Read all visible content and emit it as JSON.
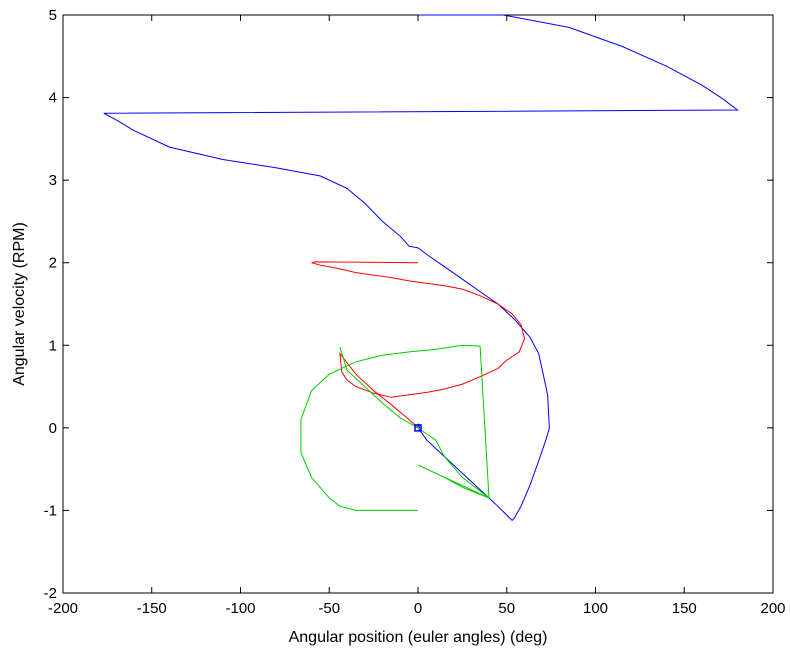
{
  "chart_data": {
    "type": "line",
    "title": "",
    "xlabel": "Angular position (euler angles) (deg)",
    "ylabel": "Angular velocity (RPM)",
    "xlim": [
      -200,
      200
    ],
    "ylim": [
      -2,
      5
    ],
    "xticks": [
      -200,
      -150,
      -100,
      -50,
      0,
      50,
      100,
      150,
      200
    ],
    "yticks": [
      -2,
      -1,
      0,
      1,
      2,
      3,
      4,
      5
    ],
    "grid": false,
    "legend": "none",
    "series": [
      {
        "color": "#0000ff",
        "x": [
          0,
          48,
          85,
          115,
          140,
          160,
          172,
          180,
          -177,
          -170,
          -160,
          -140,
          -110,
          -80,
          -55,
          -40,
          -30,
          -20,
          -10,
          -5,
          0,
          5,
          15,
          25,
          35,
          45,
          55,
          63,
          68,
          70,
          73,
          74,
          72,
          68,
          63,
          58,
          54,
          53,
          45,
          35,
          25,
          15,
          5,
          0,
          0,
          1
        ],
        "y": [
          5.0,
          5.0,
          4.85,
          4.62,
          4.38,
          4.15,
          3.98,
          3.85,
          3.81,
          3.73,
          3.6,
          3.4,
          3.25,
          3.15,
          3.05,
          2.9,
          2.72,
          2.5,
          2.32,
          2.2,
          2.18,
          2.1,
          1.95,
          1.8,
          1.65,
          1.5,
          1.3,
          1.1,
          0.9,
          0.7,
          0.4,
          0.0,
          -0.15,
          -0.4,
          -0.7,
          -0.95,
          -1.1,
          -1.12,
          -0.95,
          -0.75,
          -0.55,
          -0.35,
          -0.15,
          0.0,
          0.05,
          0.0
        ]
      },
      {
        "color": "#ff0000",
        "x": [
          0,
          -58,
          -60,
          -55,
          -45,
          -35,
          -25,
          -15,
          -5,
          5,
          15,
          25,
          35,
          45,
          53,
          58,
          60,
          57,
          50,
          45,
          35,
          25,
          15,
          5,
          -5,
          -15,
          -25,
          -35,
          -40,
          -43,
          -44,
          -35,
          -25,
          -15,
          -5,
          0
        ],
        "y": [
          2.0,
          2.01,
          2.0,
          1.97,
          1.93,
          1.88,
          1.85,
          1.82,
          1.78,
          1.75,
          1.72,
          1.68,
          1.6,
          1.5,
          1.38,
          1.25,
          1.08,
          0.92,
          0.82,
          0.72,
          0.62,
          0.53,
          0.47,
          0.43,
          0.4,
          0.37,
          0.42,
          0.5,
          0.58,
          0.68,
          0.9,
          0.65,
          0.45,
          0.28,
          0.1,
          0.0
        ]
      },
      {
        "color": "#00cc00",
        "x": [
          0,
          -20,
          -35,
          -44,
          -50,
          -60,
          -66,
          -66,
          -60,
          -50,
          -35,
          -20,
          -5,
          10,
          25,
          35,
          40,
          25,
          15,
          0,
          40,
          25,
          15,
          10,
          0,
          -10,
          -20,
          -30,
          -40,
          -44
        ],
        "y": [
          -1.0,
          -1.0,
          -1.0,
          -0.95,
          -0.85,
          -0.6,
          -0.3,
          0.1,
          0.45,
          0.65,
          0.8,
          0.88,
          0.92,
          0.95,
          1.0,
          0.99,
          -0.85,
          -0.72,
          -0.6,
          -0.45,
          -0.85,
          -0.6,
          -0.35,
          -0.15,
          0.0,
          0.12,
          0.3,
          0.5,
          0.7,
          0.98
        ]
      }
    ]
  }
}
